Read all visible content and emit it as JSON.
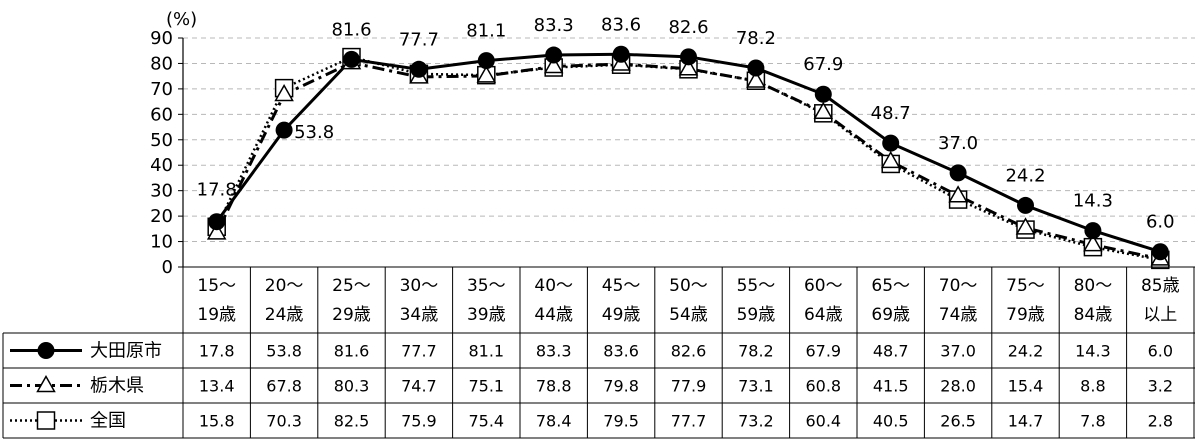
{
  "chart_data": {
    "type": "line",
    "ylabel": "(%)",
    "ylim": [
      0,
      90
    ],
    "yticks": [
      0,
      10,
      20,
      30,
      40,
      50,
      60,
      70,
      80,
      90
    ],
    "grid": true,
    "categories": [
      [
        "15～",
        "19歳"
      ],
      [
        "20～",
        "24歳"
      ],
      [
        "25～",
        "29歳"
      ],
      [
        "30～",
        "34歳"
      ],
      [
        "35～",
        "39歳"
      ],
      [
        "40～",
        "44歳"
      ],
      [
        "45～",
        "49歳"
      ],
      [
        "50～",
        "54歳"
      ],
      [
        "55～",
        "59歳"
      ],
      [
        "60～",
        "64歳"
      ],
      [
        "65～",
        "69歳"
      ],
      [
        "70～",
        "74歳"
      ],
      [
        "75～",
        "79歳"
      ],
      [
        "80～",
        "84歳"
      ],
      [
        "85歳",
        "以上"
      ]
    ],
    "series": [
      {
        "name": "大田原市",
        "style": "solid",
        "marker": "circle",
        "labeled": true,
        "values": [
          17.8,
          53.8,
          81.6,
          77.7,
          81.1,
          83.3,
          83.6,
          82.6,
          78.2,
          67.9,
          48.7,
          37.0,
          24.2,
          14.3,
          6.0
        ],
        "display": [
          "17.8",
          "53.8",
          "81.6",
          "77.7",
          "81.1",
          "83.3",
          "83.6",
          "82.6",
          "78.2",
          "67.9",
          "48.7",
          "37.0",
          "24.2",
          "14.3",
          "6.0"
        ]
      },
      {
        "name": "栃木県",
        "style": "dashdot",
        "marker": "triangle",
        "labeled": false,
        "values": [
          13.4,
          67.8,
          80.3,
          74.7,
          75.1,
          78.8,
          79.8,
          77.9,
          73.1,
          60.8,
          41.5,
          28.0,
          15.4,
          8.8,
          3.2
        ],
        "display": [
          "13.4",
          "67.8",
          "80.3",
          "74.7",
          "75.1",
          "78.8",
          "79.8",
          "77.9",
          "73.1",
          "60.8",
          "41.5",
          "28.0",
          "15.4",
          "8.8",
          "3.2"
        ]
      },
      {
        "name": "全国",
        "style": "dotted",
        "marker": "square",
        "labeled": false,
        "values": [
          15.8,
          70.3,
          82.5,
          75.9,
          75.4,
          78.4,
          79.5,
          77.7,
          73.2,
          60.4,
          40.5,
          26.5,
          14.7,
          7.8,
          2.8
        ],
        "display": [
          "15.8",
          "70.3",
          "82.5",
          "75.9",
          "75.4",
          "78.4",
          "79.5",
          "77.7",
          "73.2",
          "60.4",
          "40.5",
          "26.5",
          "14.7",
          "7.8",
          "2.8"
        ]
      }
    ]
  }
}
